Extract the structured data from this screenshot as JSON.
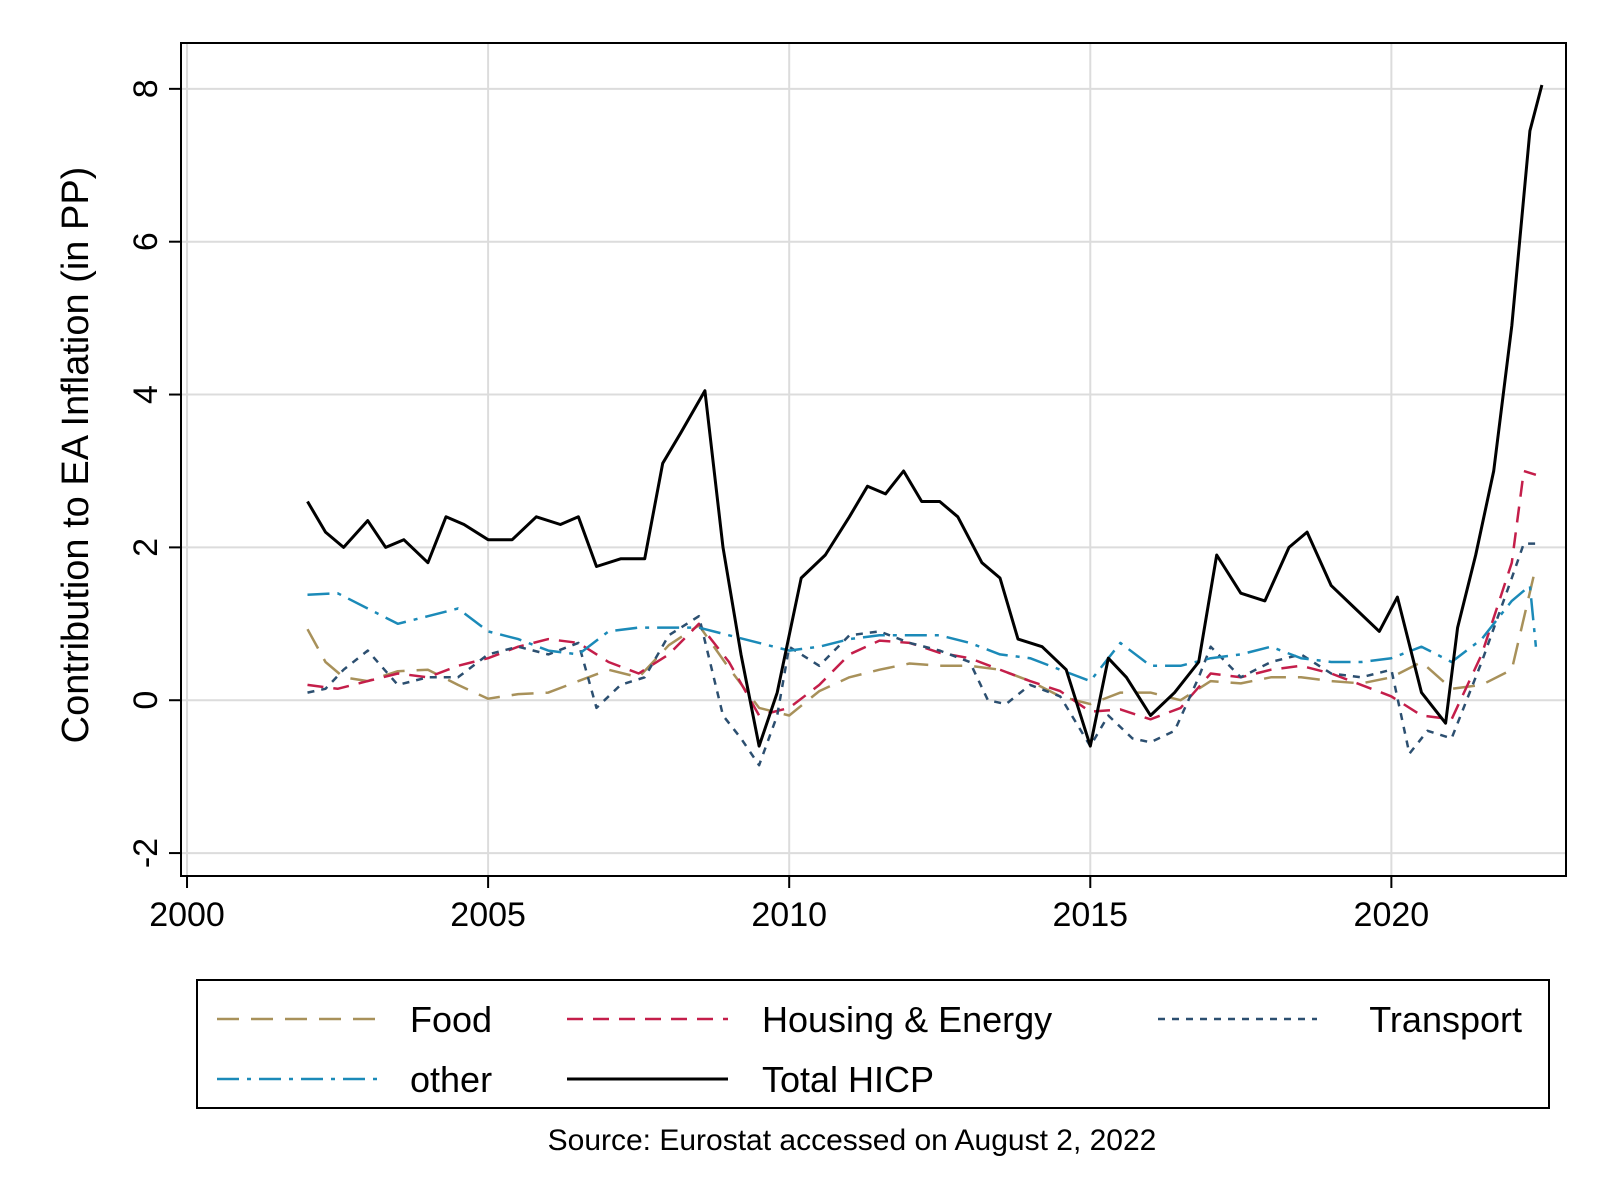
{
  "chart_data": {
    "type": "line",
    "title": "",
    "xlabel": "",
    "ylabel": "Contribution to EA Inflation (in PP)",
    "xlim": [
      1999.9,
      2022.9
    ],
    "ylim": [
      -2.3,
      8.6
    ],
    "xticks": [
      2000,
      2005,
      2010,
      2015,
      2020
    ],
    "xtick_labels": [
      "2000",
      "2005",
      "2010",
      "2015",
      "2020"
    ],
    "yticks": [
      -2,
      0,
      2,
      4,
      6,
      8
    ],
    "ytick_labels": [
      "-2",
      "0",
      "2",
      "4",
      "6",
      "8"
    ],
    "grid": true,
    "legend_position": "bottom",
    "note": "Source: Eurostat accessed on August 2, 2022",
    "series": [
      {
        "name": "Food",
        "color": "#a8915a",
        "dash": "22,12",
        "x": [
          2002.0,
          2002.3,
          2002.6,
          2003.0,
          2003.5,
          2004.0,
          2004.5,
          2005.0,
          2005.5,
          2006.0,
          2006.5,
          2007.0,
          2007.5,
          2008.0,
          2008.5,
          2009.0,
          2009.5,
          2010.0,
          2010.5,
          2011.0,
          2011.5,
          2012.0,
          2012.5,
          2013.0,
          2013.5,
          2014.0,
          2014.5,
          2015.0,
          2015.5,
          2016.0,
          2016.5,
          2017.0,
          2017.5,
          2018.0,
          2018.5,
          2019.0,
          2019.5,
          2020.0,
          2020.5,
          2021.0,
          2021.5,
          2022.0,
          2022.4
        ],
        "y": [
          0.93,
          0.5,
          0.3,
          0.25,
          0.38,
          0.4,
          0.2,
          0.02,
          0.08,
          0.1,
          0.25,
          0.4,
          0.3,
          0.72,
          0.98,
          0.42,
          -0.1,
          -0.2,
          0.12,
          0.3,
          0.4,
          0.48,
          0.45,
          0.45,
          0.4,
          0.25,
          0.05,
          -0.05,
          0.1,
          0.1,
          0.0,
          0.25,
          0.22,
          0.3,
          0.3,
          0.25,
          0.22,
          0.3,
          0.5,
          0.15,
          0.2,
          0.4,
          1.75
        ]
      },
      {
        "name": "Housing & Energy",
        "color": "#c41e4a",
        "dash": "16,10",
        "x": [
          2002.0,
          2002.5,
          2003.0,
          2003.5,
          2004.0,
          2004.5,
          2005.0,
          2005.5,
          2006.0,
          2006.5,
          2007.0,
          2007.5,
          2008.0,
          2008.5,
          2009.0,
          2009.5,
          2010.0,
          2010.5,
          2011.0,
          2011.5,
          2012.0,
          2012.5,
          2013.0,
          2013.5,
          2014.0,
          2014.5,
          2015.0,
          2015.5,
          2016.0,
          2016.5,
          2017.0,
          2017.5,
          2018.0,
          2018.5,
          2019.0,
          2019.5,
          2020.0,
          2020.5,
          2021.0,
          2021.5,
          2022.0,
          2022.2,
          2022.4
        ],
        "y": [
          0.2,
          0.15,
          0.25,
          0.35,
          0.3,
          0.45,
          0.55,
          0.7,
          0.8,
          0.75,
          0.5,
          0.35,
          0.6,
          1.0,
          0.5,
          -0.2,
          -0.1,
          0.2,
          0.6,
          0.78,
          0.75,
          0.62,
          0.55,
          0.4,
          0.25,
          0.12,
          -0.15,
          -0.12,
          -0.25,
          -0.1,
          0.35,
          0.3,
          0.4,
          0.45,
          0.35,
          0.2,
          0.05,
          -0.2,
          -0.25,
          0.6,
          1.8,
          3.0,
          2.95
        ]
      },
      {
        "name": "Transport",
        "color": "#2c4f70",
        "dash": "7,7",
        "x": [
          2002.0,
          2002.3,
          2002.6,
          2003.0,
          2003.5,
          2004.0,
          2004.5,
          2005.0,
          2005.5,
          2006.0,
          2006.5,
          2006.8,
          2007.2,
          2007.6,
          2008.0,
          2008.5,
          2008.9,
          2009.2,
          2009.5,
          2009.8,
          2010.0,
          2010.5,
          2011.0,
          2011.5,
          2012.0,
          2012.5,
          2013.0,
          2013.3,
          2013.6,
          2014.0,
          2014.5,
          2015.0,
          2015.3,
          2015.7,
          2016.0,
          2016.4,
          2016.8,
          2017.0,
          2017.5,
          2018.0,
          2018.5,
          2019.0,
          2019.5,
          2020.0,
          2020.3,
          2020.6,
          2021.0,
          2021.5,
          2022.0,
          2022.2,
          2022.4
        ],
        "y": [
          0.1,
          0.15,
          0.4,
          0.65,
          0.2,
          0.3,
          0.3,
          0.6,
          0.7,
          0.6,
          0.75,
          -0.1,
          0.2,
          0.3,
          0.85,
          1.1,
          -0.2,
          -0.5,
          -0.85,
          -0.2,
          0.7,
          0.45,
          0.85,
          0.9,
          0.75,
          0.65,
          0.5,
          0.0,
          -0.05,
          0.2,
          0.05,
          -0.6,
          -0.2,
          -0.5,
          -0.55,
          -0.4,
          0.3,
          0.7,
          0.3,
          0.5,
          0.6,
          0.35,
          0.3,
          0.4,
          -0.7,
          -0.4,
          -0.5,
          0.5,
          1.6,
          2.05,
          2.05
        ]
      },
      {
        "name": "other",
        "color": "#1b8ab8",
        "dash": "22,8,4,8",
        "x": [
          2002.0,
          2002.5,
          2003.0,
          2003.5,
          2004.0,
          2004.5,
          2005.0,
          2005.5,
          2006.0,
          2006.5,
          2007.0,
          2007.5,
          2008.0,
          2008.5,
          2009.0,
          2009.5,
          2010.0,
          2010.5,
          2011.0,
          2011.5,
          2012.0,
          2012.5,
          2013.0,
          2013.5,
          2014.0,
          2014.5,
          2015.0,
          2015.5,
          2016.0,
          2016.5,
          2017.0,
          2017.5,
          2018.0,
          2018.5,
          2019.0,
          2019.5,
          2020.0,
          2020.5,
          2021.0,
          2021.5,
          2022.0,
          2022.3,
          2022.4
        ],
        "y": [
          1.38,
          1.4,
          1.2,
          1.0,
          1.1,
          1.2,
          0.9,
          0.8,
          0.65,
          0.6,
          0.9,
          0.95,
          0.95,
          0.95,
          0.85,
          0.75,
          0.65,
          0.7,
          0.8,
          0.85,
          0.85,
          0.85,
          0.75,
          0.6,
          0.55,
          0.4,
          0.25,
          0.75,
          0.45,
          0.45,
          0.55,
          0.6,
          0.7,
          0.55,
          0.5,
          0.5,
          0.55,
          0.7,
          0.5,
          0.8,
          1.3,
          1.5,
          0.7
        ]
      },
      {
        "name": "Total HICP",
        "color": "#000000",
        "dash": "",
        "x": [
          2002.0,
          2002.3,
          2002.6,
          2003.0,
          2003.3,
          2003.6,
          2004.0,
          2004.3,
          2004.6,
          2005.0,
          2005.4,
          2005.8,
          2006.2,
          2006.5,
          2006.8,
          2007.2,
          2007.6,
          2007.9,
          2008.2,
          2008.6,
          2008.9,
          2009.2,
          2009.5,
          2009.8,
          2010.2,
          2010.6,
          2011.0,
          2011.3,
          2011.6,
          2011.9,
          2012.2,
          2012.5,
          2012.8,
          2013.2,
          2013.5,
          2013.8,
          2014.2,
          2014.6,
          2015.0,
          2015.3,
          2015.6,
          2016.0,
          2016.4,
          2016.8,
          2017.1,
          2017.5,
          2017.9,
          2018.3,
          2018.6,
          2019.0,
          2019.4,
          2019.8,
          2020.1,
          2020.5,
          2020.9,
          2021.1,
          2021.4,
          2021.7,
          2022.0,
          2022.3,
          2022.5
        ],
        "y": [
          2.6,
          2.2,
          2.0,
          2.35,
          2.0,
          2.1,
          1.8,
          2.4,
          2.3,
          2.1,
          2.1,
          2.4,
          2.3,
          2.4,
          1.75,
          1.85,
          1.85,
          3.1,
          3.5,
          4.05,
          2.0,
          0.6,
          -0.6,
          0.1,
          1.6,
          1.9,
          2.4,
          2.8,
          2.7,
          3.0,
          2.6,
          2.6,
          2.4,
          1.8,
          1.6,
          0.8,
          0.7,
          0.4,
          -0.6,
          0.55,
          0.3,
          -0.2,
          0.1,
          0.5,
          1.9,
          1.4,
          1.3,
          2.0,
          2.2,
          1.5,
          1.2,
          0.9,
          1.35,
          0.1,
          -0.3,
          0.95,
          1.9,
          3.0,
          4.9,
          7.45,
          8.05
        ]
      }
    ]
  }
}
